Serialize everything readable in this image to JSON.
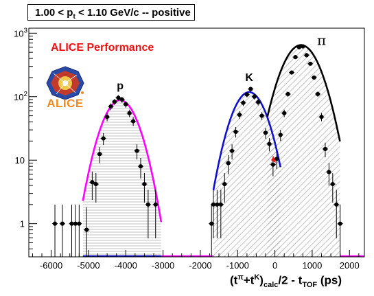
{
  "chart_data": {
    "type": "line",
    "title_parts": {
      "a": "1.00 < p",
      "sub": "t",
      "b": " < 1.10 GeV/c -- positive"
    },
    "performance_label": "ALICE Performance",
    "logo_text": "ALICE",
    "x_label_parts": {
      "a": "(t",
      "s1": "π",
      "b": "+t",
      "s2": "K",
      "c": ")",
      "s3": "calc",
      "d": "/2 - t",
      "s4": "TOF",
      "e": " (ps)"
    },
    "xlim": [
      -6600,
      2400
    ],
    "ylim": [
      0.3,
      1200
    ],
    "y_scale": "log",
    "x_ticks": [
      -6000,
      -5000,
      -4000,
      -3000,
      -2000,
      -1000,
      0,
      1000,
      2000
    ],
    "x_tick_labels": [
      "-6000",
      "-5000",
      "-4000",
      "-3000",
      "-2000",
      "-1000",
      "0",
      "1000",
      "2000"
    ],
    "y_ticks": [
      1,
      10,
      100,
      1000
    ],
    "y_tick_labels": [
      {
        "base": "1",
        "exp": ""
      },
      {
        "base": "10",
        "exp": ""
      },
      {
        "base": "10",
        "exp": "2"
      },
      {
        "base": "10",
        "exp": "3"
      }
    ],
    "peaks": [
      {
        "name": "p",
        "color": "#ff00ff",
        "fill": "horizontal",
        "amplitude": 88,
        "mean": -4150,
        "sigma": 370,
        "range": [
          -5150,
          -3050
        ]
      },
      {
        "name": "K",
        "color": "#1111cc",
        "fill": "diagonal",
        "amplitude": 118,
        "mean": -690,
        "sigma": 360,
        "range": [
          -1650,
          150
        ]
      },
      {
        "name": "π",
        "color": "#000000",
        "fill": "diagonal",
        "amplitude": 650,
        "mean": 700,
        "sigma": 395,
        "range": [
          -200,
          1750
        ]
      }
    ],
    "points": [
      [
        -5900,
        1.0
      ],
      [
        -5700,
        1.0
      ],
      [
        -5450,
        1.0
      ],
      [
        -5350,
        1.0
      ],
      [
        -5250,
        1.0
      ],
      [
        -5050,
        0.8
      ],
      [
        -4900,
        4.5
      ],
      [
        -4800,
        4.2
      ],
      [
        -4700,
        12.5
      ],
      [
        -4600,
        22
      ],
      [
        -4500,
        48
      ],
      [
        -4400,
        70
      ],
      [
        -4300,
        83
      ],
      [
        -4200,
        96
      ],
      [
        -4100,
        90
      ],
      [
        -4000,
        76
      ],
      [
        -3900,
        55
      ],
      [
        -3800,
        41
      ],
      [
        -3700,
        14
      ],
      [
        -3600,
        8
      ],
      [
        -3500,
        4.2
      ],
      [
        -3400,
        2.0
      ],
      [
        -3200,
        2.0
      ],
      [
        -1700,
        1.0
      ],
      [
        -1650,
        2.0
      ],
      [
        -1550,
        2.0
      ],
      [
        -1450,
        2.0
      ],
      [
        -1350,
        4.2
      ],
      [
        -1250,
        9.0
      ],
      [
        -1150,
        14
      ],
      [
        -1050,
        28
      ],
      [
        -950,
        52
      ],
      [
        -850,
        80
      ],
      [
        -750,
        108
      ],
      [
        -650,
        132
      ],
      [
        -550,
        100
      ],
      [
        -450,
        82
      ],
      [
        -350,
        50
      ],
      [
        -250,
        27
      ],
      [
        -150,
        18
      ],
      [
        -50,
        8.5
      ],
      [
        50,
        10.5
      ],
      [
        150,
        25
      ],
      [
        250,
        55
      ],
      [
        350,
        110
      ],
      [
        450,
        240
      ],
      [
        550,
        420
      ],
      [
        650,
        600
      ],
      [
        750,
        620
      ],
      [
        850,
        450
      ],
      [
        950,
        330
      ],
      [
        1050,
        200
      ],
      [
        1150,
        110
      ],
      [
        1250,
        48
      ],
      [
        1350,
        15
      ],
      [
        1450,
        6.5
      ],
      [
        1550,
        4.2
      ],
      [
        1650,
        2.0
      ],
      [
        1750,
        1.0
      ]
    ],
    "marker": {
      "x": -30,
      "y": 10,
      "color": "#ee1111"
    }
  }
}
